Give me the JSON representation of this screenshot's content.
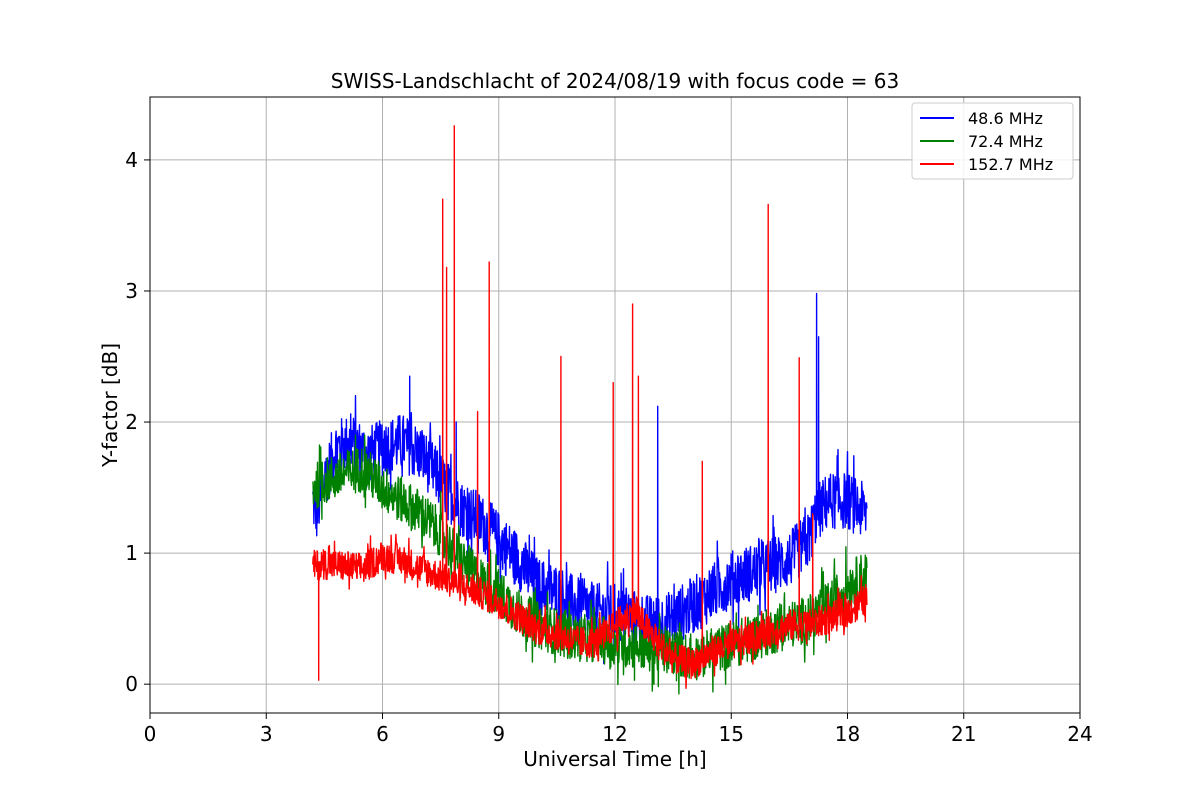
{
  "chart_data": {
    "type": "line",
    "title": "SWISS-Landschlacht of 2024/08/19 with focus code = 63",
    "xlabel": "Universal Time [h]",
    "ylabel": "Y-factor [dB]",
    "xlim": [
      0,
      24
    ],
    "ylim": [
      -0.22,
      4.48
    ],
    "xticks": [
      0,
      3,
      6,
      9,
      12,
      15,
      18,
      21,
      24
    ],
    "yticks": [
      0,
      1,
      2,
      3,
      4
    ],
    "grid": true,
    "legend_position": "top-right",
    "series": [
      {
        "name": " 48.6 MHz",
        "color": "#0000ff",
        "x": [
          4.2,
          4.3,
          4.5,
          4.8,
          5.2,
          5.6,
          6.0,
          6.5,
          7.0,
          7.5,
          8.0,
          8.5,
          9.0,
          9.5,
          10.0,
          10.5,
          11.0,
          11.5,
          12.0,
          12.5,
          13.0,
          13.5,
          14.0,
          14.5,
          15.0,
          15.5,
          16.0,
          16.5,
          17.0,
          17.2,
          17.5,
          18.0,
          18.5
        ],
        "y": [
          1.4,
          1.3,
          1.55,
          1.8,
          1.85,
          1.75,
          1.8,
          1.85,
          1.75,
          1.55,
          1.35,
          1.25,
          1.1,
          0.95,
          0.75,
          0.7,
          0.6,
          0.55,
          0.55,
          0.5,
          0.45,
          0.5,
          0.6,
          0.7,
          0.8,
          0.85,
          0.9,
          0.95,
          1.1,
          1.3,
          1.4,
          1.4,
          1.3
        ],
        "spikes": [
          [
            6.7,
            2.35
          ],
          [
            7.9,
            2.0
          ],
          [
            13.1,
            2.12
          ],
          [
            17.2,
            2.98
          ],
          [
            17.25,
            2.65
          ]
        ]
      },
      {
        "name": " 72.4 MHz",
        "color": "#008000",
        "x": [
          4.2,
          4.5,
          5.0,
          5.5,
          6.0,
          6.5,
          7.0,
          7.5,
          8.0,
          8.5,
          9.0,
          9.5,
          10.0,
          10.5,
          11.0,
          11.5,
          12.0,
          12.5,
          13.0,
          13.5,
          14.0,
          14.5,
          15.0,
          15.5,
          16.0,
          16.5,
          17.0,
          17.5,
          18.0,
          18.5
        ],
        "y": [
          1.5,
          1.55,
          1.6,
          1.65,
          1.5,
          1.4,
          1.3,
          1.15,
          0.95,
          0.8,
          0.7,
          0.55,
          0.45,
          0.4,
          0.35,
          0.35,
          0.3,
          0.3,
          0.25,
          0.25,
          0.2,
          0.25,
          0.3,
          0.35,
          0.4,
          0.45,
          0.5,
          0.6,
          0.75,
          0.85
        ],
        "spikes": [
          [
            5.3,
            1.9
          ],
          [
            12.5,
            0.03
          ],
          [
            13.0,
            0.0
          ]
        ]
      },
      {
        "name": " 152.7 MHz",
        "color": "#ff0000",
        "x": [
          4.2,
          4.5,
          5.0,
          5.5,
          6.0,
          6.5,
          7.0,
          7.5,
          8.0,
          8.5,
          9.0,
          9.5,
          10.0,
          10.5,
          11.0,
          11.5,
          12.0,
          12.5,
          13.0,
          13.5,
          14.0,
          14.5,
          15.0,
          15.5,
          16.0,
          16.5,
          17.0,
          17.5,
          18.0,
          18.5
        ],
        "y": [
          0.9,
          0.92,
          0.9,
          0.88,
          0.98,
          0.95,
          0.88,
          0.82,
          0.75,
          0.7,
          0.62,
          0.52,
          0.42,
          0.38,
          0.32,
          0.32,
          0.45,
          0.55,
          0.35,
          0.2,
          0.15,
          0.25,
          0.3,
          0.35,
          0.4,
          0.45,
          0.45,
          0.5,
          0.55,
          0.65
        ],
        "spikes": [
          [
            4.35,
            0.03
          ],
          [
            7.55,
            3.7
          ],
          [
            7.65,
            3.18
          ],
          [
            7.85,
            4.26
          ],
          [
            8.45,
            2.08
          ],
          [
            8.75,
            3.22
          ],
          [
            10.6,
            2.5
          ],
          [
            11.95,
            2.3
          ],
          [
            12.45,
            2.9
          ],
          [
            12.6,
            2.35
          ],
          [
            14.25,
            1.7
          ],
          [
            15.95,
            3.66
          ],
          [
            16.75,
            2.49
          ],
          [
            17.1,
            1.3
          ]
        ]
      }
    ]
  }
}
